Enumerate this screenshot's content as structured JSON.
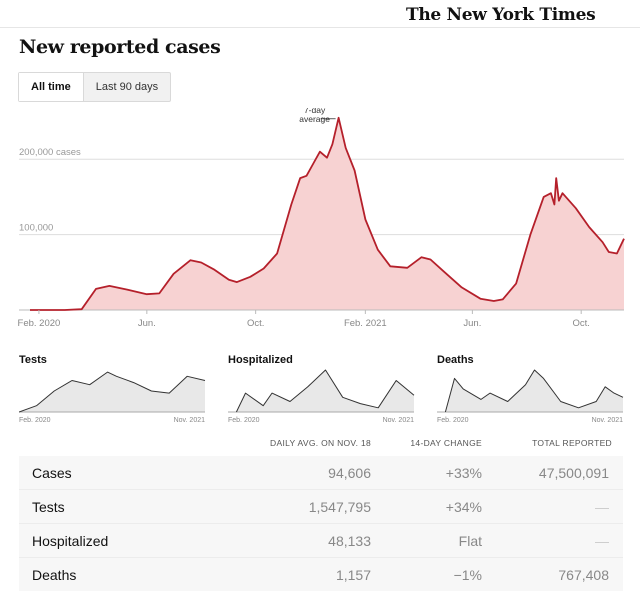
{
  "masthead": {
    "logo_text": "The New York Times"
  },
  "page": {
    "title": "New reported cases"
  },
  "tabs": [
    {
      "label": "All time",
      "active": true
    },
    {
      "label": "Last 90 days",
      "active": false
    }
  ],
  "colors": {
    "cases_line": "#b5202b",
    "cases_fill": "#f7d2d2",
    "small_line": "#333333",
    "small_fill": "#e8e8e8",
    "grid": "#dddddd"
  },
  "chart_data": [
    {
      "type": "area",
      "title": "New reported cases",
      "ylim": [
        0,
        260000
      ],
      "y_ticks": [
        {
          "value": 200000,
          "label": "200,000 cases"
        },
        {
          "value": 100000,
          "label": "100,000"
        }
      ],
      "x_ticks": [
        "Feb. 2020",
        "Jun.",
        "Oct.",
        "Feb. 2021",
        "Jun.",
        "Oct."
      ],
      "annotation": {
        "line1": "7-day",
        "line2": "average"
      },
      "series": [
        {
          "name": "7-day average",
          "x": [
            "2020-01-22",
            "2020-03-01",
            "2020-03-20",
            "2020-04-05",
            "2020-04-20",
            "2020-05-10",
            "2020-06-01",
            "2020-06-15",
            "2020-07-01",
            "2020-07-20",
            "2020-08-01",
            "2020-08-15",
            "2020-09-01",
            "2020-09-10",
            "2020-09-25",
            "2020-10-10",
            "2020-10-25",
            "2020-11-10",
            "2020-11-20",
            "2020-11-27",
            "2020-12-05",
            "2020-12-12",
            "2020-12-20",
            "2020-12-26",
            "2021-01-02",
            "2021-01-10",
            "2021-01-20",
            "2021-02-01",
            "2021-02-15",
            "2021-03-01",
            "2021-03-20",
            "2021-04-05",
            "2021-04-15",
            "2021-05-01",
            "2021-05-20",
            "2021-06-10",
            "2021-06-25",
            "2021-07-05",
            "2021-07-20",
            "2021-08-05",
            "2021-08-20",
            "2021-08-28",
            "2021-09-01",
            "2021-09-03",
            "2021-09-06",
            "2021-09-10",
            "2021-09-25",
            "2021-10-10",
            "2021-10-25",
            "2021-11-01",
            "2021-11-10",
            "2021-11-18"
          ],
          "y": [
            0,
            0,
            1000,
            28000,
            32000,
            27000,
            21000,
            22000,
            48000,
            66000,
            63000,
            54000,
            40000,
            37000,
            44000,
            55000,
            75000,
            140000,
            175000,
            178000,
            195000,
            210000,
            202000,
            220000,
            255000,
            215000,
            185000,
            120000,
            80000,
            58000,
            56000,
            70000,
            67000,
            50000,
            30000,
            15000,
            12000,
            14000,
            35000,
            100000,
            150000,
            155000,
            140000,
            175000,
            145000,
            155000,
            135000,
            110000,
            90000,
            77000,
            75000,
            94606
          ]
        }
      ]
    },
    {
      "type": "area",
      "title": "Tests",
      "x_ticks": [
        "Feb. 2020",
        "Nov. 2021"
      ],
      "series": [
        {
          "name": "Tests",
          "x": [
            "2020-02",
            "2020-04",
            "2020-06",
            "2020-08",
            "2020-10",
            "2020-12",
            "2021-01",
            "2021-03",
            "2021-05",
            "2021-07",
            "2021-09",
            "2021-11"
          ],
          "y": [
            0,
            0.15,
            0.5,
            0.75,
            0.65,
            0.95,
            0.85,
            0.7,
            0.5,
            0.45,
            0.85,
            0.75
          ]
        }
      ]
    },
    {
      "type": "area",
      "title": "Hospitalized",
      "x_ticks": [
        "Feb. 2020",
        "Nov. 2021"
      ],
      "series": [
        {
          "name": "Hospitalized",
          "x": [
            "2020-03",
            "2020-04",
            "2020-06",
            "2020-07",
            "2020-09",
            "2020-11",
            "2021-01",
            "2021-03",
            "2021-05",
            "2021-07",
            "2021-09",
            "2021-11"
          ],
          "y": [
            0,
            0.45,
            0.15,
            0.45,
            0.25,
            0.6,
            1.0,
            0.35,
            0.2,
            0.1,
            0.75,
            0.4
          ]
        }
      ]
    },
    {
      "type": "area",
      "title": "Deaths",
      "x_ticks": [
        "Feb. 2020",
        "Nov. 2021"
      ],
      "series": [
        {
          "name": "Deaths",
          "x": [
            "2020-03",
            "2020-04",
            "2020-05",
            "2020-07",
            "2020-08",
            "2020-10",
            "2020-12",
            "2021-01",
            "2021-02",
            "2021-04",
            "2021-06",
            "2021-08",
            "2021-09",
            "2021-10",
            "2021-11"
          ],
          "y": [
            0,
            0.8,
            0.55,
            0.3,
            0.45,
            0.25,
            0.65,
            1.0,
            0.8,
            0.25,
            0.1,
            0.25,
            0.6,
            0.45,
            0.35
          ]
        }
      ]
    }
  ],
  "table": {
    "headers": {
      "daily_avg": "DAILY AVG. ON NOV. 18",
      "change": "14-DAY CHANGE",
      "total": "TOTAL REPORTED"
    },
    "rows": [
      {
        "label": "Cases",
        "daily_avg": "94,606",
        "change": "+33%",
        "total": "47,500,091"
      },
      {
        "label": "Tests",
        "daily_avg": "1,547,795",
        "change": "+34%",
        "total": "—"
      },
      {
        "label": "Hospitalized",
        "daily_avg": "48,133",
        "change": "Flat",
        "total": "—"
      },
      {
        "label": "Deaths",
        "daily_avg": "1,157",
        "change": "−1%",
        "total": "767,408"
      }
    ]
  }
}
